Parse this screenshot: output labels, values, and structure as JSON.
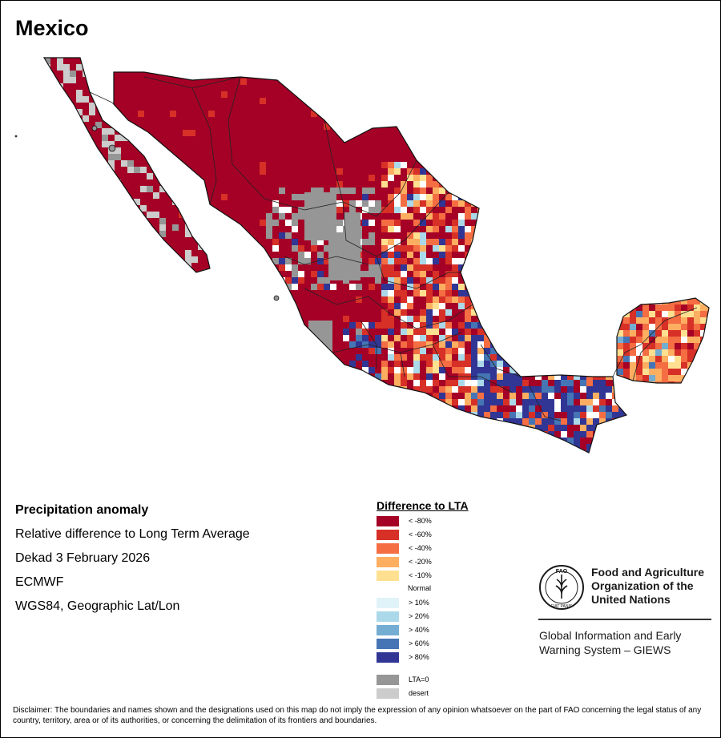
{
  "title": "Mexico",
  "info": {
    "heading": "Precipitation anomaly",
    "lines": [
      "Relative difference to Long Term Average",
      "Dekad 3 February 2026",
      "ECMWF",
      "WGS84, Geographic Lat/Lon"
    ]
  },
  "legend": {
    "title": "Difference to LTA",
    "items": [
      {
        "label": "< -80%",
        "color": "#a50026"
      },
      {
        "label": "< -60%",
        "color": "#d73027"
      },
      {
        "label": "< -40%",
        "color": "#f46d43"
      },
      {
        "label": "< -20%",
        "color": "#fdae61"
      },
      {
        "label": "< -10%",
        "color": "#fee090"
      },
      {
        "label": "> 10%",
        "color": "#e0f3f8"
      },
      {
        "label": "> 20%",
        "color": "#abd9e9"
      },
      {
        "label": "> 40%",
        "color": "#74add1"
      },
      {
        "label": "> 60%",
        "color": "#4575b4"
      },
      {
        "label": "> 80%",
        "color": "#313695"
      },
      {
        "label": "LTA=0",
        "color": "#969696"
      },
      {
        "label": "desert",
        "color": "#cccccc"
      }
    ],
    "normal_label": "Normal"
  },
  "organization": {
    "logo_letters": "FAO",
    "logo_motto": "FIAT PANIS",
    "name_lines": [
      "Food and Agriculture",
      "Organization of the",
      "United Nations"
    ],
    "system_lines": [
      "Global Information and Early",
      "Warning System – GIEWS"
    ]
  },
  "disclaimer": "Disclaimer: The boundaries and names shown and the designations used on this map do not imply the expression of any opinion whatsoever on the part of FAO concerning the legal status of any country, territory, area or of its authorities, or concerning the delimitation of its frontiers and boundaries."
}
